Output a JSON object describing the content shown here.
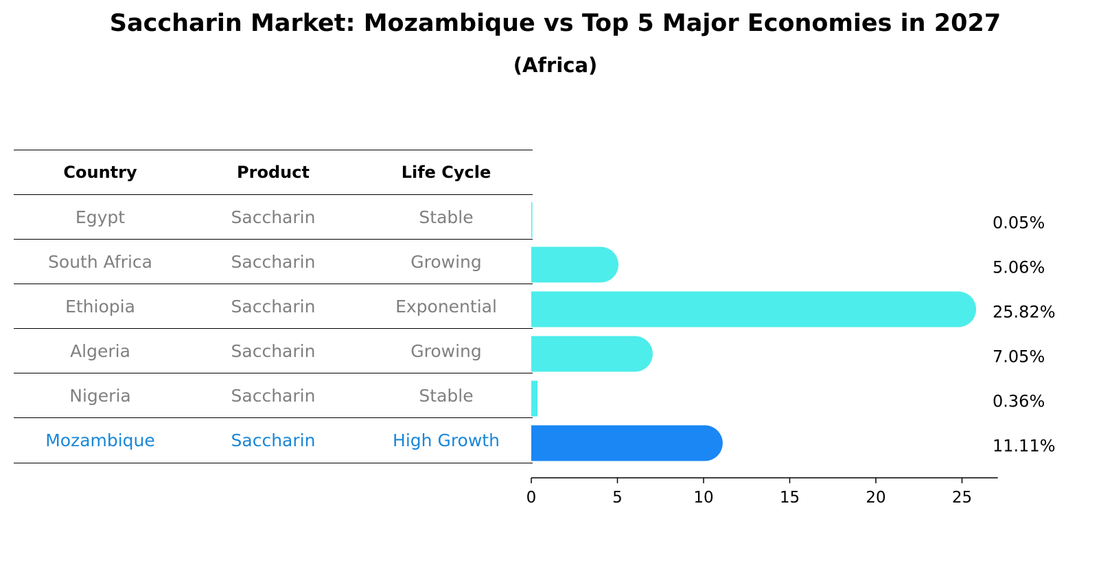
{
  "title": "Saccharin Market: Mozambique vs Top 5 Major Economies in 2027",
  "subtitle": "(Africa)",
  "table": {
    "headers": [
      "Country",
      "Product",
      "Life Cycle"
    ],
    "rows": [
      [
        "Egypt",
        "Saccharin",
        "Stable"
      ],
      [
        "South Africa",
        "Saccharin",
        "Growing"
      ],
      [
        "Ethiopia",
        "Saccharin",
        "Exponential"
      ],
      [
        "Algeria",
        "Saccharin",
        "Growing"
      ],
      [
        "Nigeria",
        "Saccharin",
        "Stable"
      ],
      [
        "Mozambique",
        "Saccharin",
        "High Growth"
      ]
    ]
  },
  "chart_data": {
    "type": "bar",
    "orientation": "horizontal",
    "categories": [
      "Egypt",
      "South Africa",
      "Ethiopia",
      "Algeria",
      "Nigeria",
      "Mozambique"
    ],
    "values": [
      0.05,
      5.06,
      25.82,
      7.05,
      0.36,
      11.11
    ],
    "value_labels": [
      "0.05%",
      "5.06%",
      "25.82%",
      "7.05%",
      "0.36%",
      "11.11%"
    ],
    "highlight": "Mozambique",
    "colors": {
      "default": "#4dedeb",
      "highlight": "#1a87f5"
    },
    "xticks": [
      "0",
      "5",
      "10",
      "15",
      "20",
      "25"
    ],
    "xlim": [
      0,
      27
    ]
  }
}
